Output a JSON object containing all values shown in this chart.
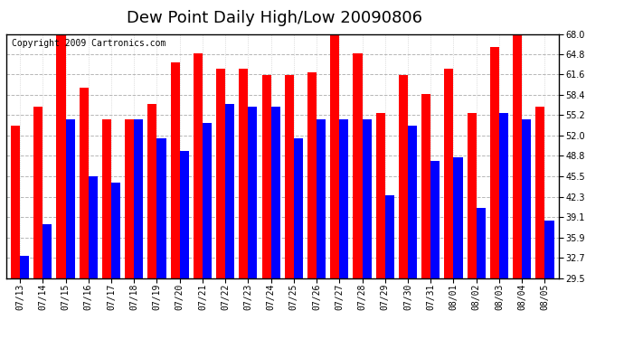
{
  "title": "Dew Point Daily High/Low 20090806",
  "copyright": "Copyright 2009 Cartronics.com",
  "dates": [
    "07/13",
    "07/14",
    "07/15",
    "07/16",
    "07/17",
    "07/18",
    "07/19",
    "07/20",
    "07/21",
    "07/22",
    "07/23",
    "07/24",
    "07/25",
    "07/26",
    "07/27",
    "07/28",
    "07/29",
    "07/30",
    "07/31",
    "08/01",
    "08/02",
    "08/03",
    "08/04",
    "08/05"
  ],
  "high": [
    53.5,
    56.5,
    68.0,
    59.5,
    54.5,
    54.5,
    57.0,
    63.5,
    65.0,
    62.5,
    62.5,
    61.5,
    61.5,
    62.0,
    68.0,
    65.0,
    55.5,
    61.5,
    58.5,
    62.5,
    55.5,
    66.0,
    68.0,
    56.5
  ],
  "low": [
    33.0,
    38.0,
    54.5,
    45.5,
    44.5,
    54.5,
    51.5,
    49.5,
    54.0,
    57.0,
    56.5,
    56.5,
    51.5,
    54.5,
    54.5,
    54.5,
    42.5,
    53.5,
    48.0,
    48.5,
    40.5,
    55.5,
    54.5,
    38.5
  ],
  "high_color": "#ff0000",
  "low_color": "#0000ff",
  "background_color": "#ffffff",
  "grid_color": "#aaaaaa",
  "ymin": 29.5,
  "ymax": 68.0,
  "yticks": [
    29.5,
    32.7,
    35.9,
    39.1,
    42.3,
    45.5,
    48.8,
    52.0,
    55.2,
    58.4,
    61.6,
    64.8,
    68.0
  ],
  "title_fontsize": 13,
  "tick_fontsize": 7,
  "copyright_fontsize": 7
}
